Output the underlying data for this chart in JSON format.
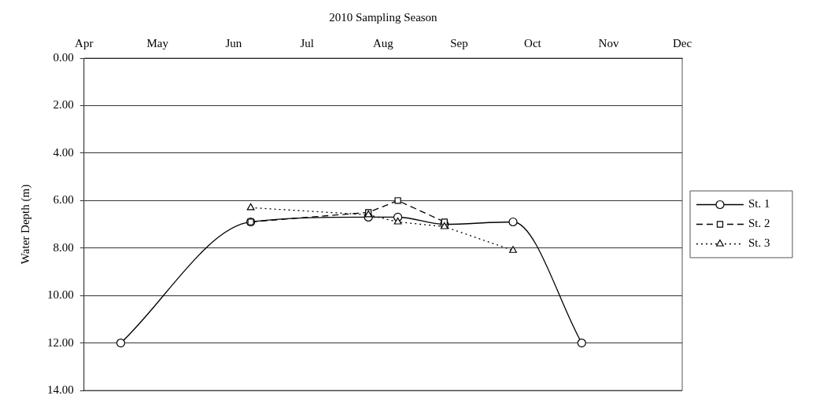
{
  "chart_data": {
    "type": "line",
    "xlabel": "2010 Sampling Season",
    "ylabel": "Water Depth (m)",
    "xlim": [
      "2010-04-01",
      "2010-12-01"
    ],
    "xticks": [
      {
        "value": "2010-04-01",
        "label": "Apr"
      },
      {
        "value": "2010-05-01",
        "label": "May"
      },
      {
        "value": "2010-06-01",
        "label": "Jun"
      },
      {
        "value": "2010-07-01",
        "label": "Jul"
      },
      {
        "value": "2010-08-01",
        "label": "Aug"
      },
      {
        "value": "2010-09-01",
        "label": "Sep"
      },
      {
        "value": "2010-10-01",
        "label": "Oct"
      },
      {
        "value": "2010-11-01",
        "label": "Nov"
      },
      {
        "value": "2010-12-01",
        "label": "Dec"
      }
    ],
    "ylim": [
      14,
      0
    ],
    "yticks": [
      {
        "value": 0,
        "label": "0.00"
      },
      {
        "value": 2,
        "label": "2.00"
      },
      {
        "value": 4,
        "label": "4.00"
      },
      {
        "value": 6,
        "label": "6.00"
      },
      {
        "value": 8,
        "label": "8.00"
      },
      {
        "value": 10,
        "label": "10.00"
      },
      {
        "value": 12,
        "label": "12.00"
      },
      {
        "value": 14,
        "label": "14.00"
      }
    ],
    "grid": "y",
    "legend": "right",
    "series": [
      {
        "name": "St. 1",
        "color": "#000000",
        "marker": "circle",
        "line_style": "solid",
        "x": [
          "2010-04-16",
          "2010-06-08",
          "2010-07-26",
          "2010-08-07",
          "2010-08-26",
          "2010-09-23",
          "2010-10-21"
        ],
        "values": [
          12.0,
          6.9,
          6.7,
          6.7,
          7.0,
          6.9,
          12.0
        ]
      },
      {
        "name": "St. 2",
        "color": "#000000",
        "marker": "square",
        "line_style": "dashed",
        "x": [
          "2010-06-08",
          "2010-07-26",
          "2010-08-07",
          "2010-08-26"
        ],
        "values": [
          6.9,
          6.5,
          6.0,
          6.9
        ]
      },
      {
        "name": "St. 3",
        "color": "#000000",
        "marker": "triangle",
        "line_style": "dotted",
        "x": [
          "2010-06-08",
          "2010-07-26",
          "2010-08-07",
          "2010-08-26",
          "2010-09-23"
        ],
        "values": [
          6.3,
          6.6,
          6.9,
          7.1,
          8.1
        ]
      }
    ]
  }
}
